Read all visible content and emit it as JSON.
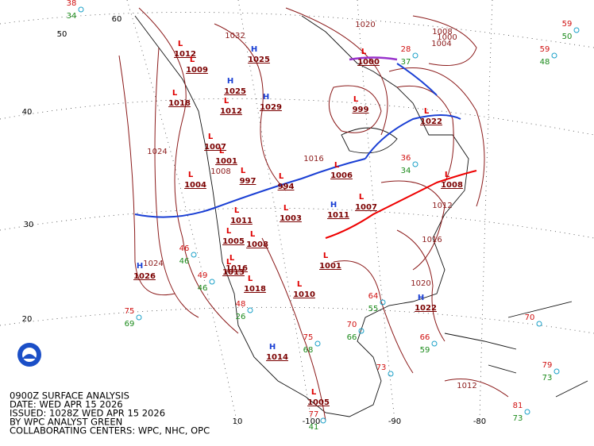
{
  "caption": [
    "0900Z SURFACE ANALYSIS",
    "DATE: WED APR 15 2026",
    "ISSUED: 1028Z WED APR 15 2026",
    "BY WPC ANALYST GREEN",
    "COLLABORATING CENTERS: WPC, NHC, OPC"
  ],
  "latitude_labels": [
    "60",
    "50",
    "40",
    "30",
    "20"
  ],
  "longitude_labels": [
    "10",
    "-100",
    "-90",
    "-80"
  ],
  "pressure_centers": [
    {
      "type": "H",
      "value": 1026
    },
    {
      "type": "H",
      "value": 1022
    },
    {
      "type": "L",
      "value": 1012
    },
    {
      "type": "L",
      "value": 1009
    },
    {
      "type": "L",
      "value": 1018
    },
    {
      "type": "L",
      "value": 1012
    },
    {
      "type": "H",
      "value": 1025
    },
    {
      "type": "H",
      "value": 1029
    },
    {
      "type": "L",
      "value": 1001
    },
    {
      "type": "L",
      "value": 1007
    },
    {
      "type": "L",
      "value": 1004
    },
    {
      "type": "L",
      "value": 997
    },
    {
      "type": "L",
      "value": 994
    },
    {
      "type": "L",
      "value": 1006
    },
    {
      "type": "H",
      "value": 1011
    },
    {
      "type": "L",
      "value": 1007
    },
    {
      "type": "L",
      "value": 1003
    },
    {
      "type": "L",
      "value": 1011
    },
    {
      "type": "L",
      "value": 1005
    },
    {
      "type": "L",
      "value": 1008
    },
    {
      "type": "L",
      "value": 1001
    },
    {
      "type": "L",
      "value": 1016
    },
    {
      "type": "L",
      "value": 1013
    },
    {
      "type": "L",
      "value": 1018
    },
    {
      "type": "L",
      "value": 1010
    },
    {
      "type": "H",
      "value": 1014
    },
    {
      "type": "L",
      "value": 1005
    },
    {
      "type": "L",
      "value": 1022
    },
    {
      "type": "L",
      "value": 1008
    },
    {
      "type": "L",
      "value": 1000
    },
    {
      "type": "H",
      "value": 1025
    },
    {
      "type": "L",
      "value": 999
    }
  ],
  "isobar_labels": [
    "1032",
    "1020",
    "1024",
    "1024",
    "1020",
    "1012",
    "1016",
    "1012",
    "1008",
    "1004",
    "1000",
    "1016",
    "1008"
  ],
  "stations": [
    {
      "temp": "59",
      "dewpoint": "50"
    },
    {
      "temp": "59",
      "dewpoint": "48"
    },
    {
      "temp": "75",
      "dewpoint": "69"
    },
    {
      "temp": "70",
      "dewpoint": null
    },
    {
      "temp": "79",
      "dewpoint": "73"
    },
    {
      "temp": "81",
      "dewpoint": "73"
    },
    {
      "temp": "66",
      "dewpoint": "59"
    },
    {
      "temp": "70",
      "dewpoint": "66"
    },
    {
      "temp": "75",
      "dewpoint": "68"
    },
    {
      "temp": "64",
      "dewpoint": "55"
    },
    {
      "temp": "73",
      "dewpoint": null
    },
    {
      "temp": "77",
      "dewpoint": "41"
    },
    {
      "temp": "48",
      "dewpoint": "26"
    },
    {
      "temp": "46",
      "dewpoint": "46"
    },
    {
      "temp": "49",
      "dewpoint": "46"
    },
    {
      "temp": "38",
      "dewpoint": "34"
    },
    {
      "temp": "36",
      "dewpoint": "34"
    },
    {
      "temp": "28",
      "dewpoint": "37"
    }
  ]
}
